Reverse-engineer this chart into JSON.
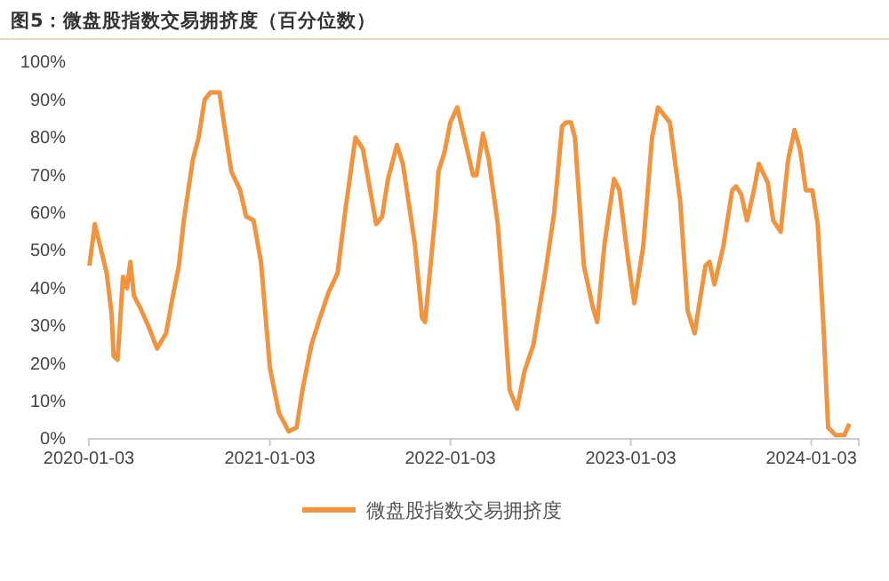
{
  "chart_data": {
    "type": "line",
    "title": "图5：微盘股指数交易拥挤度（百分位数）",
    "xlim": [
      "2020-01-03",
      "2024-04-08"
    ],
    "xticks": [
      {
        "value": "2020-01-03",
        "label": "2020-01-03"
      },
      {
        "value": "2021-01-03",
        "label": "2021-01-03"
      },
      {
        "value": "2022-01-03",
        "label": "2022-01-03"
      },
      {
        "value": "2023-01-03",
        "label": "2023-01-03"
      },
      {
        "value": "2024-01-03",
        "label": "2024-01-03"
      }
    ],
    "ylim": [
      0,
      100
    ],
    "yticks": [
      {
        "value": 0,
        "label": "0%"
      },
      {
        "value": 10,
        "label": "10%"
      },
      {
        "value": 20,
        "label": "20%"
      },
      {
        "value": 30,
        "label": "30%"
      },
      {
        "value": 40,
        "label": "40%"
      },
      {
        "value": 50,
        "label": "50%"
      },
      {
        "value": 60,
        "label": "60%"
      },
      {
        "value": 70,
        "label": "70%"
      },
      {
        "value": 80,
        "label": "80%"
      },
      {
        "value": 90,
        "label": "90%"
      },
      {
        "value": 100,
        "label": "100%"
      }
    ],
    "grid": false,
    "legend": "bottom",
    "marker": "none",
    "line_style": "solid",
    "x": [
      "2020-01-04",
      "2020-01-15",
      "2020-02-08",
      "2020-02-18",
      "2020-02-22",
      "2020-03-01",
      "2020-03-12",
      "2020-03-20",
      "2020-03-27",
      "2020-04-03",
      "2020-04-15",
      "2020-05-02",
      "2020-05-20",
      "2020-06-07",
      "2020-06-21",
      "2020-07-03",
      "2020-07-13",
      "2020-07-31",
      "2020-08-12",
      "2020-08-24",
      "2020-09-05",
      "2020-09-23",
      "2020-10-02",
      "2020-10-17",
      "2020-11-04",
      "2020-11-16",
      "2020-12-01",
      "2020-12-16",
      "2021-01-03",
      "2021-01-21",
      "2021-02-10",
      "2021-02-26",
      "2021-03-10",
      "2021-03-28",
      "2021-04-14",
      "2021-05-02",
      "2021-05-20",
      "2021-06-04",
      "2021-06-25",
      "2021-07-10",
      "2021-08-06",
      "2021-08-18",
      "2021-08-30",
      "2021-09-17",
      "2021-09-29",
      "2021-10-23",
      "2021-11-07",
      "2021-11-13",
      "2021-12-04",
      "2021-12-10",
      "2021-12-22",
      "2022-01-03",
      "2022-01-17",
      "2022-02-02",
      "2022-02-18",
      "2022-02-25",
      "2022-03-10",
      "2022-03-22",
      "2022-04-09",
      "2022-04-21",
      "2022-05-03",
      "2022-05-18",
      "2022-06-02",
      "2022-06-20",
      "2022-07-14",
      "2022-08-01",
      "2022-08-17",
      "2022-08-25",
      "2022-09-04",
      "2022-09-12",
      "2022-09-30",
      "2022-10-18",
      "2022-10-27",
      "2022-11-11",
      "2022-11-30",
      "2022-12-11",
      "2022-12-29",
      "2023-01-10",
      "2023-01-28",
      "2023-02-15",
      "2023-02-27",
      "2023-03-23",
      "2023-04-13",
      "2023-04-28",
      "2023-05-12",
      "2023-06-03",
      "2023-06-11",
      "2023-06-21",
      "2023-07-09",
      "2023-07-27",
      "2023-08-04",
      "2023-08-14",
      "2023-08-26",
      "2023-09-09",
      "2023-09-19",
      "2023-10-07",
      "2023-10-18",
      "2023-11-02",
      "2023-11-17",
      "2023-11-30",
      "2023-12-11",
      "2023-12-23",
      "2024-01-05",
      "2024-01-16",
      "2024-01-28",
      "2024-02-06",
      "2024-02-21",
      "2024-03-10",
      "2024-03-20"
    ],
    "series": [
      {
        "name": "微盘股指数交易拥挤度",
        "color": "#f0943f",
        "values": [
          46,
          57,
          44,
          33,
          22,
          21,
          43,
          40,
          47,
          38,
          35,
          30,
          24,
          28,
          38,
          46,
          58,
          74,
          80,
          90,
          92,
          92,
          84,
          71,
          66,
          59,
          58,
          47,
          19,
          7,
          2,
          3,
          13,
          25,
          32,
          39,
          44,
          60,
          80,
          77,
          57,
          59,
          69,
          78,
          73,
          52,
          32,
          31,
          60,
          71,
          76,
          84,
          88,
          79,
          70,
          70,
          81,
          74,
          57,
          36,
          13,
          8,
          18,
          25,
          44,
          60,
          83,
          84,
          84,
          80,
          46,
          35,
          31,
          52,
          69,
          66,
          47,
          36,
          51,
          80,
          88,
          84,
          63,
          34,
          28,
          46,
          47,
          41,
          51,
          66,
          67,
          65,
          58,
          66,
          73,
          68,
          58,
          55,
          74,
          82,
          77,
          66,
          66,
          57,
          29,
          3,
          1,
          1,
          4
        ]
      }
    ]
  }
}
